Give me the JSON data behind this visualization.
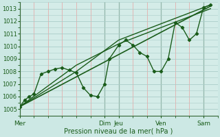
{
  "xlabel": "Pression niveau de la mer( hPa )",
  "bg_color": "#cce8e4",
  "plot_bg_color": "#d4ece8",
  "grid_major_color": "#aaccc8",
  "grid_minor_color": "#e8a0a0",
  "line_color": "#1a5c1a",
  "ylim": [
    1004.5,
    1013.5
  ],
  "yticks": [
    1005,
    1006,
    1007,
    1008,
    1009,
    1010,
    1011,
    1012,
    1013
  ],
  "xlim": [
    0,
    168
  ],
  "day_labels": [
    "Mer",
    "Dim",
    "Jeu",
    "Ven",
    "Sam"
  ],
  "day_positions": [
    0,
    72,
    84,
    120,
    156
  ],
  "vline_positions": [
    0,
    72,
    84,
    120,
    156
  ],
  "minor_x_step": 12,
  "series1_x": [
    0,
    4,
    8,
    12,
    18,
    24,
    30,
    36,
    42,
    48,
    54,
    60,
    66,
    72,
    76,
    84,
    90,
    96,
    102,
    108,
    114,
    120,
    126,
    132,
    138,
    144,
    150,
    156,
    162
  ],
  "series1_y": [
    1005.2,
    1005.7,
    1006.0,
    1006.2,
    1007.8,
    1008.0,
    1008.2,
    1008.3,
    1008.1,
    1007.9,
    1006.7,
    1006.1,
    1006.0,
    1007.0,
    1009.0,
    1010.1,
    1010.5,
    1010.1,
    1009.5,
    1009.2,
    1008.0,
    1008.0,
    1009.0,
    1011.9,
    1011.5,
    1010.5,
    1011.0,
    1013.1,
    1013.3
  ],
  "series2_x": [
    0,
    162
  ],
  "series2_y": [
    1005.2,
    1013.2
  ],
  "series3_x": [
    0,
    48,
    84,
    120,
    162
  ],
  "series3_y": [
    1005.2,
    1008.5,
    1010.2,
    1011.5,
    1013.0
  ],
  "series4_x": [
    0,
    48,
    84,
    120,
    162
  ],
  "series4_y": [
    1005.2,
    1008.0,
    1010.5,
    1011.8,
    1013.3
  ]
}
